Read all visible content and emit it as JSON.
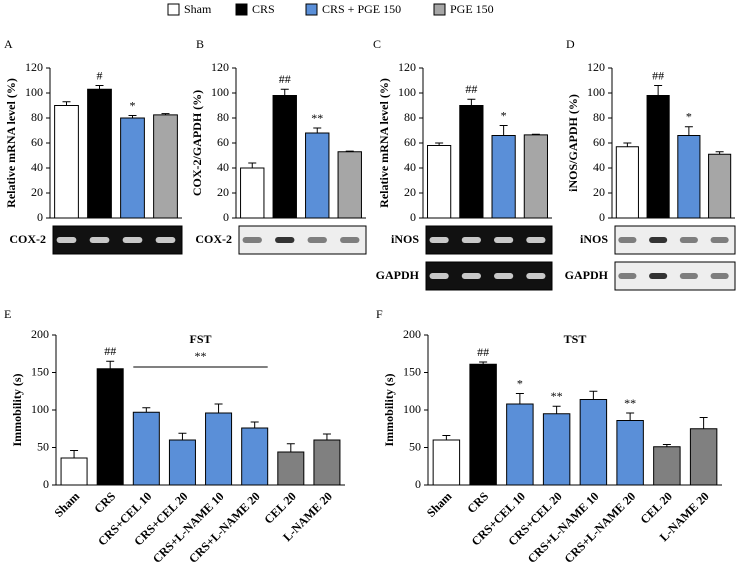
{
  "legend": [
    {
      "name": "Sham",
      "color": "#ffffff"
    },
    {
      "name": "CRS",
      "color": "#000000"
    },
    {
      "name": "CRS + PGE 150",
      "color": "#5a8fd8"
    },
    {
      "name": "PGE 150",
      "color": "#a6a6a6"
    }
  ],
  "chart_data": [
    {
      "type": "bar",
      "panel": "A",
      "ylabel": "Relative mRNA level (%)",
      "ylim": [
        0,
        120
      ],
      "yticks": [
        0,
        20,
        40,
        60,
        80,
        100,
        120
      ],
      "values": [
        90,
        103,
        80,
        82.5
      ],
      "errors": [
        3,
        3,
        2,
        1
      ],
      "annotations": [
        null,
        "#",
        "*",
        null
      ],
      "colors": [
        "#ffffff",
        "#000000",
        "#5a8fd8",
        "#a6a6a6"
      ],
      "blot_labels": [
        "COX-2"
      ]
    },
    {
      "type": "bar",
      "panel": "B",
      "ylabel": "COX-2/GAPDH (%)",
      "ylim": [
        0,
        120
      ],
      "yticks": [
        0,
        20,
        40,
        60,
        80,
        100,
        120
      ],
      "values": [
        40,
        98,
        68,
        53
      ],
      "errors": [
        4,
        5,
        4,
        0.5
      ],
      "annotations": [
        null,
        "##",
        "**",
        null
      ],
      "colors": [
        "#ffffff",
        "#000000",
        "#5a8fd8",
        "#a6a6a6"
      ],
      "blot_labels": [
        "COX-2"
      ]
    },
    {
      "type": "bar",
      "panel": "C",
      "ylabel": "Relative mRNA level (%)",
      "ylim": [
        0,
        120
      ],
      "yticks": [
        0,
        20,
        40,
        60,
        80,
        100,
        120
      ],
      "values": [
        58,
        90,
        66,
        66.5
      ],
      "errors": [
        2,
        5,
        8,
        0.5
      ],
      "annotations": [
        null,
        "##",
        "*",
        null
      ],
      "colors": [
        "#ffffff",
        "#000000",
        "#5a8fd8",
        "#a6a6a6"
      ],
      "blot_labels": [
        "iNOS",
        "GAPDH"
      ]
    },
    {
      "type": "bar",
      "panel": "D",
      "ylabel": "iNOS/GAPDH (%)",
      "ylim": [
        0,
        120
      ],
      "yticks": [
        0,
        20,
        40,
        60,
        80,
        100,
        120
      ],
      "values": [
        57,
        98,
        66,
        51
      ],
      "errors": [
        3,
        8,
        7,
        2
      ],
      "annotations": [
        null,
        "##",
        "*",
        null
      ],
      "colors": [
        "#ffffff",
        "#000000",
        "#5a8fd8",
        "#a6a6a6"
      ],
      "blot_labels": [
        "iNOS",
        "GAPDH"
      ]
    },
    {
      "type": "bar",
      "panel": "E",
      "title": "FST",
      "ylabel": "Immobility (s)",
      "ylim": [
        0,
        200
      ],
      "yticks": [
        0,
        50,
        100,
        150,
        200
      ],
      "categories": [
        "Sham",
        "CRS",
        "CRS+CEL 10",
        "CRS+CEL 20",
        "CRS+L-NAME 10",
        "CRS+L-NAME 20",
        "CEL 20",
        "L-NAME 20"
      ],
      "values": [
        36,
        155,
        97,
        60,
        96,
        76,
        44,
        60
      ],
      "errors": [
        10,
        10,
        6,
        9,
        12,
        8,
        11,
        8
      ],
      "annotations": [
        null,
        "##",
        null,
        null,
        null,
        null,
        null,
        null
      ],
      "bracket_label": "**",
      "colors": [
        "#ffffff",
        "#000000",
        "#5a8fd8",
        "#5a8fd8",
        "#5a8fd8",
        "#5a8fd8",
        "#808080",
        "#808080"
      ]
    },
    {
      "type": "bar",
      "panel": "F",
      "title": "TST",
      "ylabel": "Immobility (s)",
      "ylim": [
        0,
        200
      ],
      "yticks": [
        0,
        50,
        100,
        150,
        200
      ],
      "categories": [
        "Sham",
        "CRS",
        "CRS+CEL 10",
        "CRS+CEL 20",
        "CRS+L-NAME 10",
        "CRS+L-NAME 20",
        "CEL 20",
        "L-NAME 20"
      ],
      "values": [
        60,
        161,
        108,
        95,
        114,
        86,
        51,
        75
      ],
      "errors": [
        6,
        3,
        14,
        10,
        11,
        10,
        3,
        15
      ],
      "annotations": [
        null,
        "##",
        "*",
        "**",
        null,
        "**",
        null,
        null
      ],
      "colors": [
        "#ffffff",
        "#000000",
        "#5a8fd8",
        "#5a8fd8",
        "#5a8fd8",
        "#5a8fd8",
        "#808080",
        "#808080"
      ]
    }
  ]
}
